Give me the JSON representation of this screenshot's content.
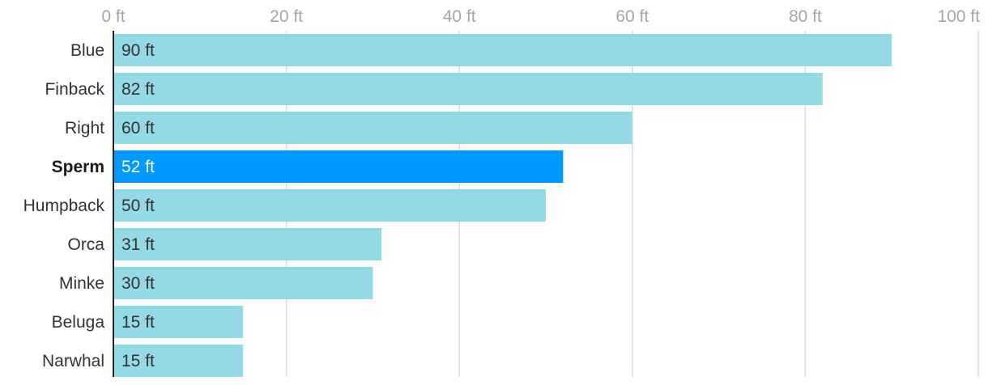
{
  "chart_data": {
    "type": "bar",
    "orientation": "horizontal",
    "categories": [
      "Blue",
      "Finback",
      "Right",
      "Sperm",
      "Humpback",
      "Orca",
      "Minke",
      "Beluga",
      "Narwhal"
    ],
    "values": [
      90,
      82,
      60,
      52,
      50,
      31,
      30,
      15,
      15
    ],
    "value_labels": [
      "90 ft",
      "82 ft",
      "60 ft",
      "52 ft",
      "50 ft",
      "31 ft",
      "30 ft",
      "15 ft",
      "15 ft"
    ],
    "highlight": "Sperm",
    "xlim": [
      0,
      100
    ],
    "x_ticks": [
      0,
      20,
      40,
      60,
      80,
      100
    ],
    "x_tick_labels": [
      "0 ft",
      "20 ft",
      "40 ft",
      "60 ft",
      "80 ft",
      "100 ft"
    ],
    "x_axis_position": "top",
    "grid": true,
    "title": "",
    "xlabel": "",
    "ylabel": ""
  },
  "colors": {
    "bar": "#94dae4",
    "bar_highlight": "#0099ff",
    "grid": "#dddddd",
    "axis": "#222222"
  }
}
